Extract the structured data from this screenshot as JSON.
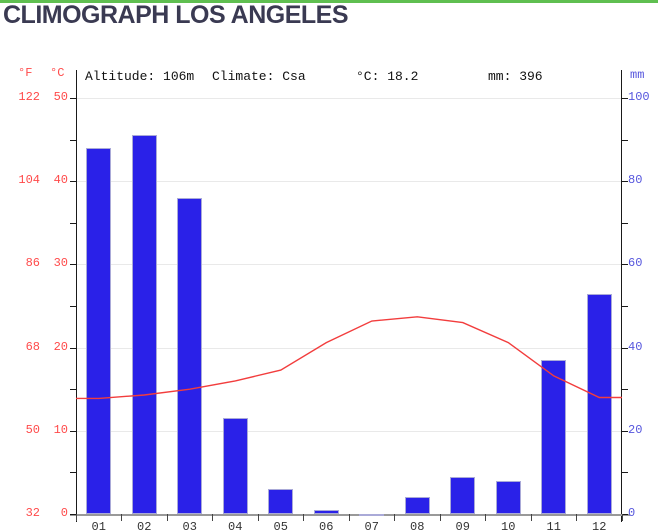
{
  "title": "CLIMOGRAPH LOS ANGELES",
  "header": {
    "altitude": "Altitude: 106m",
    "climate": "Climate: Csa",
    "mean_temp": "°C: 18.2",
    "annual_precip": "mm: 396"
  },
  "colors": {
    "accent_green": "#5fbf50",
    "title_dark": "#3a3a52",
    "bar_blue": "#2a21e8",
    "temp_line_red": "#f23d3d",
    "red_axis_label": "#ff4a4a",
    "blue_axis_label": "#5555dd",
    "gridline": "#e9e9e9",
    "axis_dark": "#1a1a1a",
    "axis_gray": "#999999",
    "month_label": "#333333"
  },
  "chart_data": {
    "type": "combo",
    "title": "CLIMOGRAPH LOS ANGELES",
    "categories": [
      "01",
      "02",
      "03",
      "04",
      "05",
      "06",
      "07",
      "08",
      "09",
      "10",
      "11",
      "12"
    ],
    "series": [
      {
        "name": "precipitation_mm",
        "type": "bar",
        "axis": "right",
        "color": "#2a21e8",
        "values": [
          88,
          91,
          76,
          23,
          6,
          1,
          0,
          4,
          9,
          8,
          37,
          53
        ]
      },
      {
        "name": "temperature_c",
        "type": "line",
        "axis": "left",
        "color": "#f23d3d",
        "values": [
          13.9,
          14.3,
          15.0,
          16.0,
          17.3,
          20.6,
          23.2,
          23.7,
          23.0,
          20.6,
          16.6,
          14.0
        ]
      }
    ],
    "left_axis": {
      "label_f": "°F",
      "label_c": "°C",
      "c_range": [
        0,
        50
      ],
      "c_ticks": [
        50,
        40,
        30,
        20,
        10,
        0
      ],
      "f_ticks": [
        122,
        104,
        86,
        68,
        50,
        32
      ],
      "minor_step_c": 5
    },
    "right_axis": {
      "label": "mm",
      "range": [
        0,
        100
      ],
      "ticks": [
        100,
        80,
        60,
        40,
        20,
        0
      ],
      "minor_step_mm": 10
    },
    "grid": true,
    "legend": "none"
  }
}
